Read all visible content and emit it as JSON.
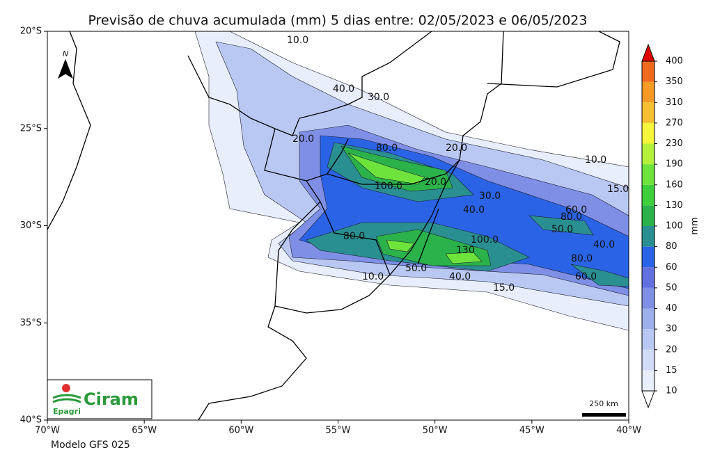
{
  "header": {
    "title": "Previsão de chuva acumulada (mm) 5 dias  entre: 02/05/2023 e 06/05/2023"
  },
  "axes": {
    "lat_labels": [
      "20°S",
      "25°S",
      "30°S",
      "35°S",
      "40°S"
    ],
    "lon_labels": [
      "70°W",
      "65°W",
      "60°W",
      "55°W",
      "50°W",
      "45°W",
      "40°W"
    ]
  },
  "colorbar": {
    "label": "mm",
    "levels": [
      10,
      15,
      20,
      30,
      40,
      50,
      60,
      80,
      100,
      130,
      160,
      190,
      230,
      270,
      310,
      350,
      400
    ],
    "colors": [
      "#e8eefb",
      "#d3dcf7",
      "#b8c8f2",
      "#9db0ec",
      "#7f8fe5",
      "#6270e0",
      "#2b63e6",
      "#2a8f91",
      "#2bb24a",
      "#3fcf3c",
      "#6de33c",
      "#b4f03c",
      "#f5f53c",
      "#f5c030",
      "#f59a25",
      "#f06a1e"
    ],
    "over_color": "#e00000",
    "under_color": "#ffffff"
  },
  "map": {
    "contour_labels": [
      "10.0",
      "40.0",
      "30.0",
      "20.0",
      "20.0",
      "80.0",
      "20.0",
      "10.0",
      "15.0",
      "100.0",
      "30.0",
      "40.0",
      "60.0",
      "80.0",
      "50.0",
      "40.0",
      "80.0",
      "130",
      "100.0",
      "50.0",
      "40.0",
      "80.0",
      "60.0",
      "10.0",
      "15.0"
    ],
    "north": "N",
    "scale": "250 km"
  },
  "logo": {
    "name": "Ciram",
    "org": "Epagri"
  },
  "footer": {
    "model": "Modelo GFS 025"
  }
}
